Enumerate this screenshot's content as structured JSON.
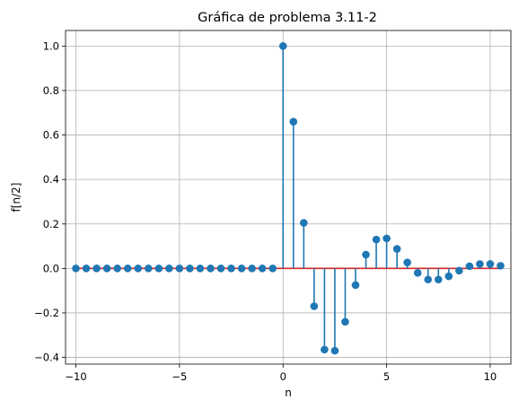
{
  "chart_data": {
    "type": "stem",
    "title": "Gráfica de problema 3.11-2",
    "xlabel": "n",
    "ylabel": "f[n/2]",
    "xlim": [
      -10.5,
      11.0
    ],
    "ylim": [
      -0.43,
      1.07
    ],
    "xticks": [
      -10,
      -5,
      0,
      5,
      10
    ],
    "xtick_labels": [
      "−10",
      "−5",
      "0",
      "5",
      "10"
    ],
    "yticks": [
      -0.4,
      -0.2,
      0.0,
      0.2,
      0.4,
      0.6,
      0.8,
      1.0
    ],
    "ytick_labels": [
      "−0.4",
      "−0.2",
      "0.0",
      "0.2",
      "0.4",
      "0.6",
      "0.8",
      "1.0"
    ],
    "grid": true,
    "baseline": {
      "y": 0,
      "x_range": [
        -10,
        10.5
      ]
    },
    "colors": {
      "stem": "#1f77b4",
      "marker": "#1f77b4",
      "baseline": "#d62728",
      "grid": "#b0b0b0"
    },
    "x": [
      -10,
      -9.5,
      -9,
      -8.5,
      -8,
      -7.5,
      -7,
      -6.5,
      -6,
      -5.5,
      -5,
      -4.5,
      -4,
      -3.5,
      -3,
      -2.5,
      -2,
      -1.5,
      -1,
      -0.5,
      0,
      0.5,
      1,
      1.5,
      2,
      2.5,
      3,
      3.5,
      4,
      4.5,
      5,
      5.5,
      6,
      6.5,
      7,
      7.5,
      8,
      8.5,
      9,
      9.5,
      10,
      10.5
    ],
    "y": [
      0,
      0,
      0,
      0,
      0,
      0,
      0,
      0,
      0,
      0,
      0,
      0,
      0,
      0,
      0,
      0,
      0,
      0,
      0,
      0,
      1.0,
      0.66,
      0.205,
      -0.17,
      -0.365,
      -0.37,
      -0.24,
      -0.075,
      0.062,
      0.13,
      0.135,
      0.088,
      0.027,
      -0.02,
      -0.05,
      -0.05,
      -0.035,
      -0.01,
      0.01,
      0.02,
      0.02,
      0.012
    ]
  }
}
